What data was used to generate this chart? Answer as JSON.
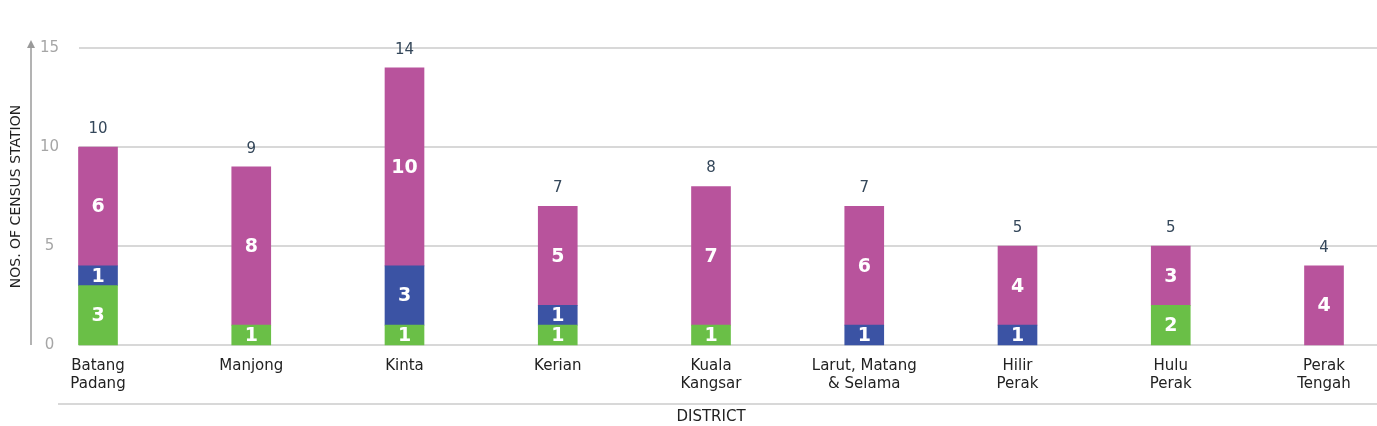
{
  "chart_data": {
    "type": "bar",
    "xlabel": "DISTRICT",
    "ylabel": "NOS. OF CENSUS STATION",
    "categories": [
      "Batang\nPadang",
      "Manjong",
      "Kinta",
      "Kerian",
      "Kuala\nKangsar",
      "Larut, Matang\n& Selama",
      "Hilir\nPerak",
      "Hulu\nPerak",
      "Perak\nTengah"
    ],
    "series": [
      {
        "color": "#6abf47",
        "values": [
          3,
          1,
          1,
          1,
          1,
          null,
          null,
          2,
          null
        ]
      },
      {
        "color": "#3b53a4",
        "values": [
          1,
          null,
          3,
          1,
          null,
          1,
          1,
          null,
          null
        ]
      },
      {
        "color": "#b8539c",
        "values": [
          6,
          8,
          10,
          5,
          7,
          6,
          4,
          3,
          4
        ]
      }
    ],
    "stacked": true,
    "ylim": [
      0,
      15
    ],
    "yticks": [
      0,
      5,
      10,
      15
    ],
    "grid": "y",
    "data_labels": true,
    "totals": [
      "10",
      "9",
      "14",
      "7",
      "8",
      "7",
      "5",
      "5",
      "4"
    ]
  }
}
